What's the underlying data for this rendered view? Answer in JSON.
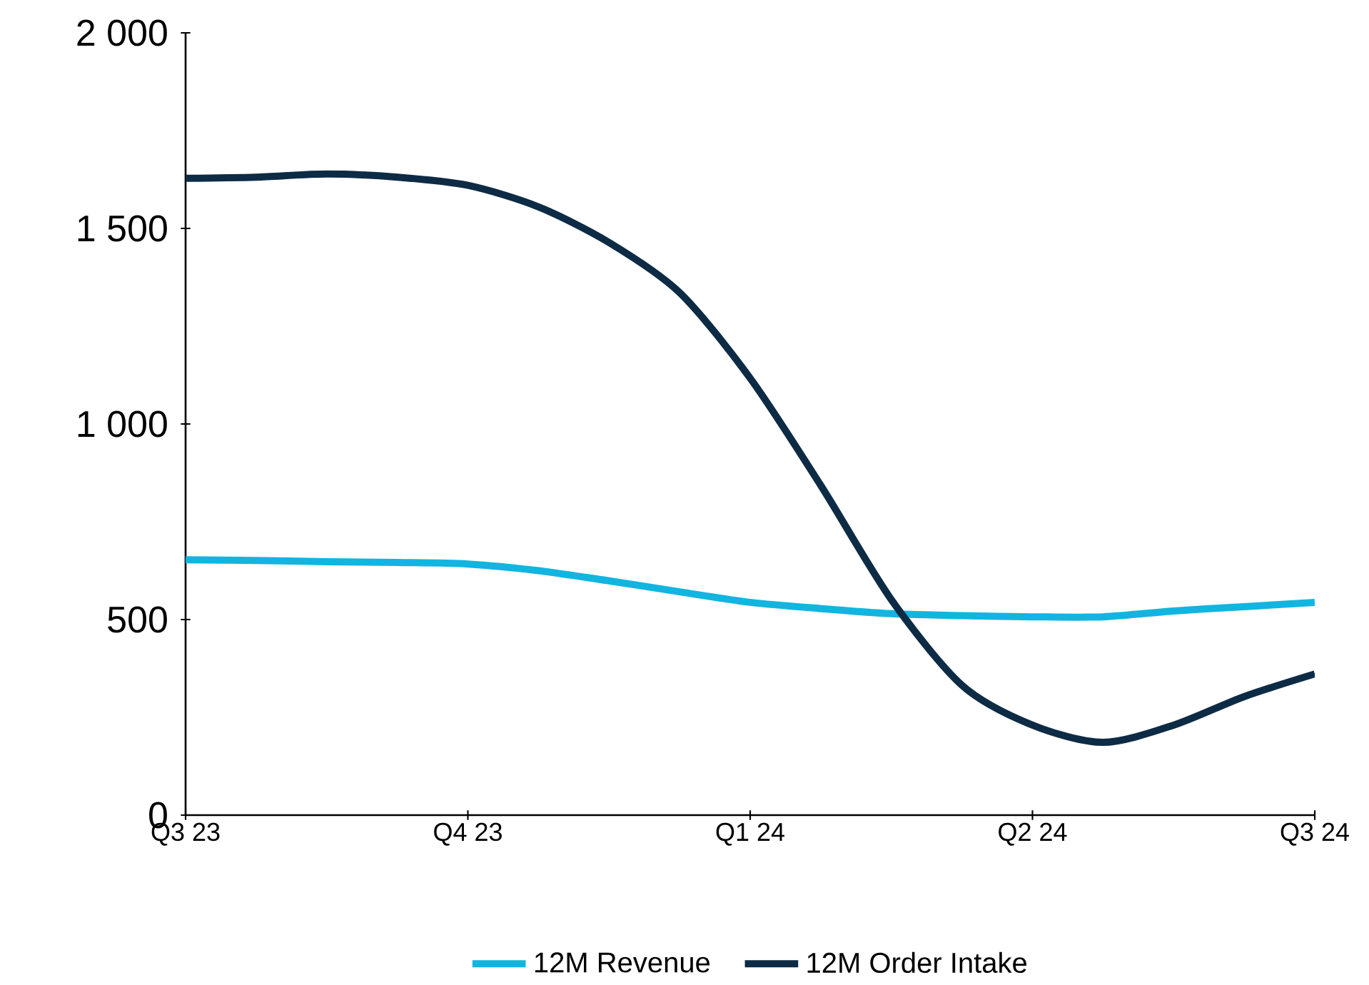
{
  "chart_data": {
    "type": "line",
    "categories": [
      "Q3 23",
      null,
      null,
      null,
      "Q4 23",
      null,
      null,
      null,
      "Q1 24",
      null,
      null,
      null,
      "Q2 24",
      null,
      null,
      null,
      "Q3 24"
    ],
    "series": [
      {
        "name": "12M Revenue",
        "color": "#12b5e0",
        "values": [
          653,
          651,
          648,
          646,
          642,
          625,
          599,
          571,
          544,
          528,
          515,
          510,
          507,
          507,
          522,
          533,
          544
        ]
      },
      {
        "name": "12M Order Intake",
        "color": "#0d2b45",
        "values": [
          1628,
          1631,
          1639,
          1631,
          1610,
          1555,
          1464,
          1336,
          1117,
          843,
          551,
          332,
          230,
          186,
          230,
          303,
          361
        ]
      }
    ],
    "ylim": [
      0,
      2000
    ],
    "yticks": [
      0,
      500,
      {
        "value": 1000,
        "label": "1 000"
      },
      {
        "value": 1500,
        "label": "1 500"
      },
      {
        "value": 2000,
        "label": "2 000"
      }
    ],
    "legend": "bottom"
  }
}
